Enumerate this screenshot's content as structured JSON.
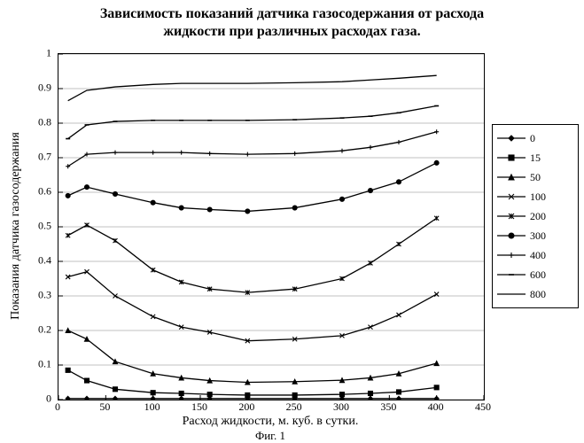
{
  "title_line1": "Зависимость показаний датчика газосодержания от расхода",
  "title_line2": "жидкости при различных расходах газа.",
  "y_label": "Показания датчика газосодержания",
  "x_label": "Расход жидкости, м. куб. в сутки.",
  "fig_caption": "Фиг. 1",
  "chart": {
    "type": "line",
    "xlim": [
      0,
      450
    ],
    "ylim": [
      0,
      1
    ],
    "xtick_step": 50,
    "ytick_step": 0.1,
    "xticks": [
      0,
      50,
      100,
      150,
      200,
      250,
      300,
      350,
      400,
      450
    ],
    "yticks": [
      0,
      0.1,
      0.2,
      0.3,
      0.4,
      0.5,
      0.6,
      0.7,
      0.8,
      0.9,
      1
    ],
    "background_color": "#ffffff",
    "grid_color": "#c0c0c0",
    "axis_color": "#000000",
    "line_color": "#000000",
    "line_width": 1.3,
    "marker_size": 5,
    "title_fontsize": 16,
    "label_fontsize": 14,
    "tick_fontsize": 12,
    "legend_fontsize": 12,
    "legend_position": "right",
    "x_values": [
      10,
      30,
      60,
      100,
      130,
      160,
      200,
      250,
      300,
      330,
      360,
      400
    ],
    "series": [
      {
        "name": "0",
        "marker": "diamond",
        "y": [
          0.003,
          0.003,
          0.003,
          0.003,
          0.003,
          0.003,
          0.003,
          0.003,
          0.003,
          0.003,
          0.003,
          0.003
        ]
      },
      {
        "name": "15",
        "marker": "square",
        "y": [
          0.085,
          0.055,
          0.03,
          0.02,
          0.018,
          0.015,
          0.013,
          0.013,
          0.015,
          0.018,
          0.022,
          0.035
        ]
      },
      {
        "name": "50",
        "marker": "triangle",
        "y": [
          0.2,
          0.175,
          0.11,
          0.075,
          0.063,
          0.055,
          0.05,
          0.052,
          0.056,
          0.063,
          0.075,
          0.105
        ]
      },
      {
        "name": "100",
        "marker": "x",
        "y": [
          0.355,
          0.37,
          0.3,
          0.24,
          0.21,
          0.195,
          0.17,
          0.175,
          0.185,
          0.21,
          0.245,
          0.305
        ]
      },
      {
        "name": "200",
        "marker": "star",
        "y": [
          0.475,
          0.505,
          0.46,
          0.375,
          0.34,
          0.32,
          0.31,
          0.32,
          0.35,
          0.395,
          0.45,
          0.525
        ]
      },
      {
        "name": "300",
        "marker": "circle",
        "y": [
          0.59,
          0.615,
          0.595,
          0.57,
          0.555,
          0.55,
          0.545,
          0.555,
          0.58,
          0.605,
          0.63,
          0.685
        ]
      },
      {
        "name": "400",
        "marker": "plus",
        "y": [
          0.675,
          0.71,
          0.715,
          0.715,
          0.715,
          0.712,
          0.71,
          0.712,
          0.72,
          0.73,
          0.745,
          0.775
        ]
      },
      {
        "name": "600",
        "marker": "dash",
        "y": [
          0.755,
          0.795,
          0.805,
          0.808,
          0.808,
          0.808,
          0.808,
          0.81,
          0.815,
          0.82,
          0.83,
          0.85
        ]
      },
      {
        "name": "800",
        "marker": "none",
        "y": [
          0.865,
          0.895,
          0.905,
          0.912,
          0.915,
          0.915,
          0.915,
          0.917,
          0.92,
          0.925,
          0.93,
          0.938
        ]
      }
    ]
  }
}
